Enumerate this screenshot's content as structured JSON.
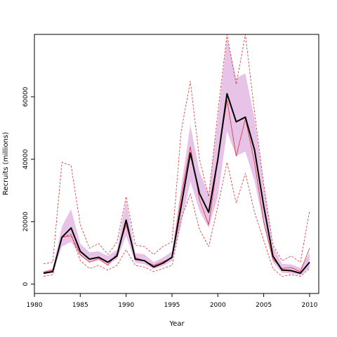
{
  "chart_data": {
    "type": "line",
    "title": "",
    "xlabel": "Year",
    "ylabel": "Recruits (millions)",
    "xlim": [
      1980,
      2011
    ],
    "ylim": [
      -3000,
      80000
    ],
    "x_ticks": [
      1980,
      1985,
      1990,
      1995,
      2000,
      2005,
      2010
    ],
    "y_ticks": [
      0,
      20000,
      40000,
      60000
    ],
    "grid": false,
    "legend": "none",
    "x": [
      1981,
      1982,
      1983,
      1984,
      1985,
      1986,
      1987,
      1988,
      1989,
      1990,
      1991,
      1992,
      1993,
      1994,
      1995,
      1996,
      1997,
      1998,
      1999,
      2000,
      2001,
      2002,
      2003,
      2004,
      2005,
      2006,
      2007,
      2008,
      2009,
      2010
    ],
    "series": [
      {
        "role": "estimate",
        "color": "#000000",
        "values": [
          3500,
          4000,
          15000,
          18000,
          10500,
          8000,
          8600,
          7000,
          9000,
          20500,
          8000,
          7500,
          5500,
          6700,
          8600,
          25000,
          42000,
          29000,
          23000,
          40000,
          61000,
          52000,
          53500,
          43000,
          25000,
          9000,
          4500,
          4300,
          3500,
          7000
        ]
      },
      {
        "role": "band-lower",
        "color": "#e8c3e8",
        "values": [
          3200,
          3600,
          12000,
          13500,
          9000,
          7000,
          7600,
          6200,
          8000,
          15500,
          6800,
          6400,
          4800,
          5800,
          7500,
          19000,
          33000,
          23500,
          18000,
          28000,
          49000,
          41000,
          42500,
          33000,
          19000,
          7000,
          3600,
          3400,
          2800,
          5200
        ]
      },
      {
        "role": "band-upper",
        "color": "#e8c3e8",
        "values": [
          4200,
          5000,
          18500,
          24000,
          13000,
          10200,
          10500,
          9000,
          11000,
          27000,
          10000,
          9500,
          7000,
          8500,
          10500,
          31000,
          51000,
          36000,
          29000,
          53000,
          79000,
          66000,
          67500,
          53000,
          32000,
          12000,
          6500,
          6300,
          5200,
          10000
        ]
      },
      {
        "role": "reference",
        "color": "#e03030",
        "values": [
          3800,
          4500,
          15000,
          15500,
          9500,
          7000,
          8200,
          6000,
          9800,
          19000,
          8500,
          7500,
          6000,
          7200,
          8300,
          28000,
          44000,
          27000,
          19000,
          40000,
          59000,
          41000,
          53000,
          39000,
          20000,
          8000,
          5000,
          5300,
          4000,
          11500
        ]
      },
      {
        "role": "reference-lower",
        "color": "#e03030",
        "values": [
          2500,
          3000,
          15000,
          16000,
          7500,
          5000,
          6000,
          4500,
          6000,
          11000,
          6000,
          5500,
          4000,
          5000,
          6000,
          21000,
          29000,
          17500,
          12000,
          25000,
          39000,
          26000,
          35500,
          23000,
          14000,
          5000,
          2500,
          3000,
          2500,
          5000
        ]
      },
      {
        "role": "reference-upper",
        "color": "#e03030",
        "values": [
          6500,
          7000,
          39000,
          38000,
          19000,
          11500,
          13000,
          9500,
          13500,
          28000,
          12500,
          12000,
          9500,
          12000,
          13500,
          49000,
          65000,
          40000,
          28000,
          55000,
          80000,
          64000,
          80000,
          55000,
          32000,
          12500,
          7500,
          9000,
          7000,
          23500
        ]
      }
    ]
  }
}
